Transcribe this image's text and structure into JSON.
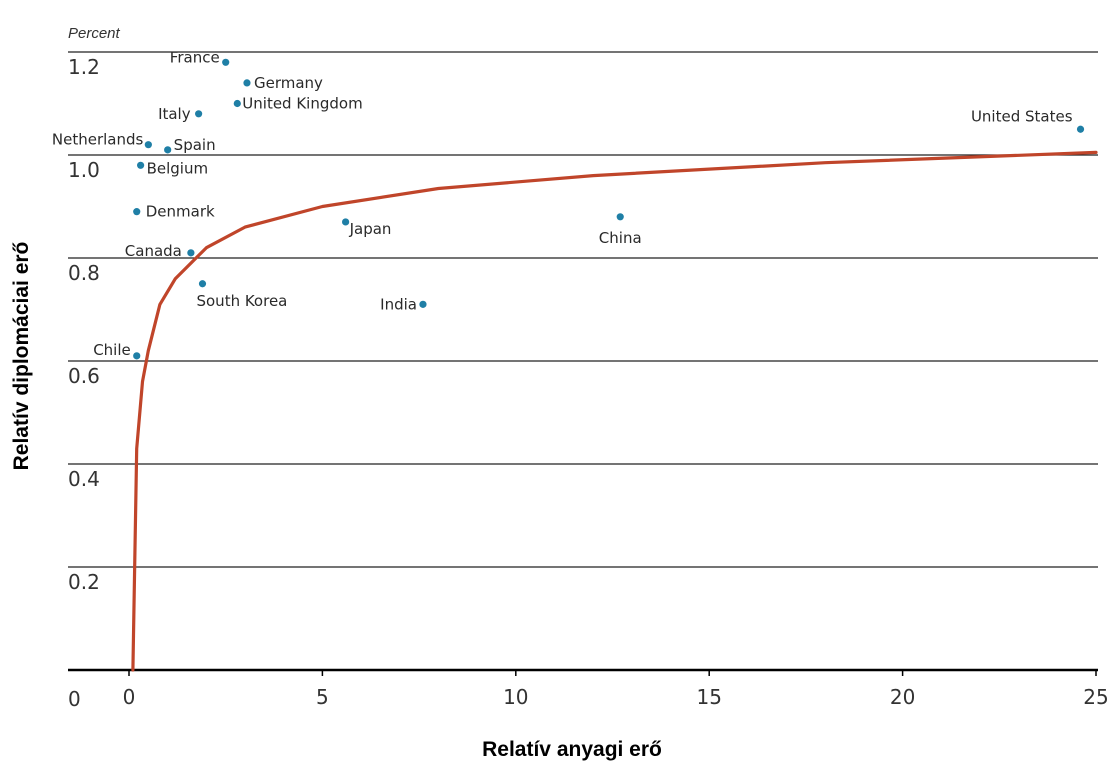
{
  "chart_data": {
    "type": "scatter",
    "title": "",
    "y_unit_label": "Percent",
    "xlabel": "Relatív anyagi erő",
    "ylabel": "Relatív diplomáciai erő",
    "xlim": [
      0,
      25
    ],
    "ylim": [
      0,
      1.2
    ],
    "x_ticks": [
      "0",
      "5",
      "10",
      "15",
      "20",
      "25"
    ],
    "y_ticks": [
      "0.2",
      "0.4",
      "0.6",
      "0.8",
      "1.0",
      "1.2"
    ],
    "origin_label": "0",
    "grid": "horizontal",
    "points": [
      {
        "label": "France",
        "x": 2.5,
        "y": 1.18
      },
      {
        "label": "Germany",
        "x": 3.05,
        "y": 1.14
      },
      {
        "label": "United Kingdom",
        "x": 2.8,
        "y": 1.1
      },
      {
        "label": "Italy",
        "x": 1.8,
        "y": 1.08
      },
      {
        "label": "Netherlands",
        "x": 0.5,
        "y": 1.02
      },
      {
        "label": "Spain",
        "x": 1.0,
        "y": 1.01
      },
      {
        "label": "Belgium",
        "x": 0.3,
        "y": 0.98
      },
      {
        "label": "Denmark",
        "x": 0.2,
        "y": 0.89
      },
      {
        "label": "Canada",
        "x": 1.6,
        "y": 0.81
      },
      {
        "label": "Japan",
        "x": 5.6,
        "y": 0.87
      },
      {
        "label": "China",
        "x": 12.7,
        "y": 0.88
      },
      {
        "label": "South Korea",
        "x": 1.9,
        "y": 0.75
      },
      {
        "label": "India",
        "x": 7.6,
        "y": 0.71
      },
      {
        "label": "Chile",
        "x": 0.2,
        "y": 0.61
      },
      {
        "label": "United States",
        "x": 24.6,
        "y": 1.05
      }
    ],
    "trend_line": {
      "type": "log",
      "x": [
        0.1,
        0.2,
        0.35,
        0.5,
        0.8,
        1.2,
        2.0,
        3.0,
        5.0,
        8.0,
        12.0,
        18.0,
        25.0
      ],
      "y": [
        0.0,
        0.43,
        0.56,
        0.62,
        0.71,
        0.76,
        0.82,
        0.86,
        0.9,
        0.935,
        0.96,
        0.985,
        1.005
      ]
    },
    "colors": {
      "points": "#1f7fa6",
      "trend": "#c0452a",
      "grid": "#222222"
    }
  }
}
